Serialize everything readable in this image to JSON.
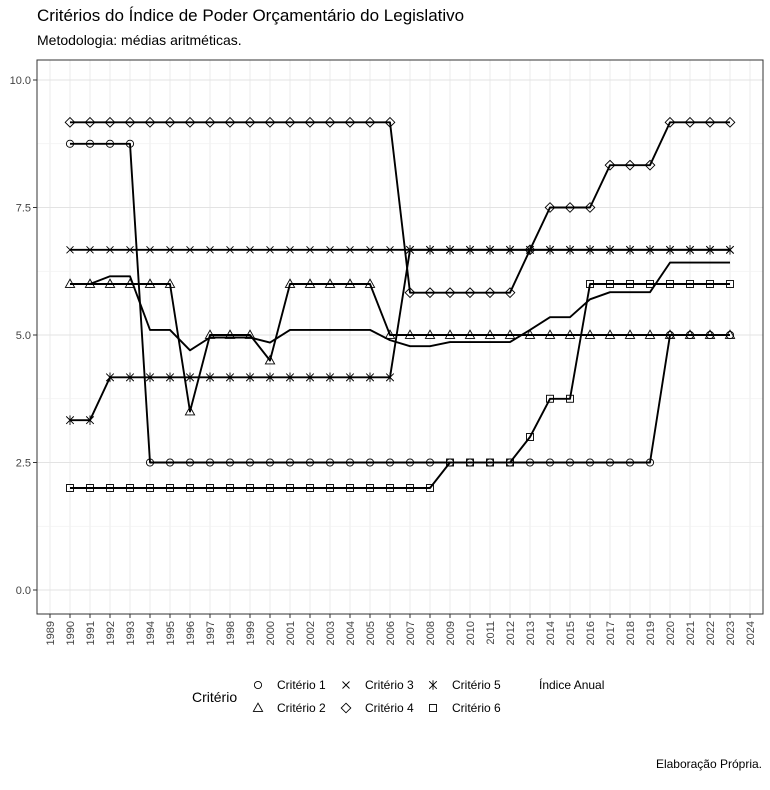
{
  "title": "Critérios do Índice de Poder Orçamentário do Legislativo",
  "subtitle": "Metodologia: médias aritméticas.",
  "caption": "Elaboração Própria.",
  "chart_data": {
    "type": "line",
    "title": "Critérios do Índice de Poder Orçamentário do Legislativo",
    "subtitle": "Metodologia: médias aritméticas.",
    "xlabel": "",
    "ylabel": "",
    "xlim": [
      1989,
      2024
    ],
    "ylim": [
      0,
      10
    ],
    "x_ticks": [
      "1989",
      "1990",
      "1991",
      "1992",
      "1993",
      "1994",
      "1995",
      "1996",
      "1997",
      "1998",
      "1999",
      "2000",
      "2001",
      "2002",
      "2003",
      "2004",
      "2005",
      "2006",
      "2007",
      "2008",
      "2009",
      "2010",
      "2011",
      "2012",
      "2013",
      "2014",
      "2015",
      "2016",
      "2017",
      "2018",
      "2019",
      "2020",
      "2021",
      "2022",
      "2023",
      "2024"
    ],
    "y_ticks": [
      "0.0",
      "2.5",
      "5.0",
      "7.5",
      "10.0"
    ],
    "grid": true,
    "legend": {
      "title": "Critério",
      "position": "bottom"
    },
    "x": [
      1990,
      1991,
      1992,
      1993,
      1994,
      1995,
      1996,
      1997,
      1998,
      1999,
      2000,
      2001,
      2002,
      2003,
      2004,
      2005,
      2006,
      2007,
      2008,
      2009,
      2010,
      2011,
      2012,
      2013,
      2014,
      2015,
      2016,
      2017,
      2018,
      2019,
      2020,
      2021,
      2022,
      2023
    ],
    "series": [
      {
        "name": "Critério 1",
        "marker": "circle",
        "values": [
          8.75,
          8.75,
          8.75,
          8.75,
          2.5,
          2.5,
          2.5,
          2.5,
          2.5,
          2.5,
          2.5,
          2.5,
          2.5,
          2.5,
          2.5,
          2.5,
          2.5,
          2.5,
          2.5,
          2.5,
          2.5,
          2.5,
          2.5,
          2.5,
          2.5,
          2.5,
          2.5,
          2.5,
          2.5,
          2.5,
          5.0,
          5.0,
          5.0,
          5.0
        ]
      },
      {
        "name": "Critério 2",
        "marker": "triangle",
        "values": [
          6.0,
          6.0,
          6.0,
          6.0,
          6.0,
          6.0,
          3.5,
          5.0,
          5.0,
          5.0,
          4.5,
          6.0,
          6.0,
          6.0,
          6.0,
          6.0,
          5.0,
          5.0,
          5.0,
          5.0,
          5.0,
          5.0,
          5.0,
          5.0,
          5.0,
          5.0,
          5.0,
          5.0,
          5.0,
          5.0,
          5.0,
          5.0,
          5.0,
          5.0
        ]
      },
      {
        "name": "Critério 3",
        "marker": "cross",
        "values": [
          6.67,
          6.67,
          6.67,
          6.67,
          6.67,
          6.67,
          6.67,
          6.67,
          6.67,
          6.67,
          6.67,
          6.67,
          6.67,
          6.67,
          6.67,
          6.67,
          6.67,
          6.67,
          6.67,
          6.67,
          6.67,
          6.67,
          6.67,
          6.67,
          6.67,
          6.67,
          6.67,
          6.67,
          6.67,
          6.67,
          6.67,
          6.67,
          6.67,
          6.67
        ]
      },
      {
        "name": "Critério 4",
        "marker": "diamond",
        "values": [
          9.17,
          9.17,
          9.17,
          9.17,
          9.17,
          9.17,
          9.17,
          9.17,
          9.17,
          9.17,
          9.17,
          9.17,
          9.17,
          9.17,
          9.17,
          9.17,
          9.17,
          5.83,
          5.83,
          5.83,
          5.83,
          5.83,
          5.83,
          6.67,
          7.5,
          7.5,
          7.5,
          8.33,
          8.33,
          8.33,
          9.17,
          9.17,
          9.17,
          9.17
        ]
      },
      {
        "name": "Critério 5",
        "marker": "asterisk",
        "values": [
          3.33,
          3.33,
          4.17,
          4.17,
          4.17,
          4.17,
          4.17,
          4.17,
          4.17,
          4.17,
          4.17,
          4.17,
          4.17,
          4.17,
          4.17,
          4.17,
          4.17,
          6.67,
          6.67,
          6.67,
          6.67,
          6.67,
          6.67,
          6.67,
          6.67,
          6.67,
          6.67,
          6.67,
          6.67,
          6.67,
          6.67,
          6.67,
          6.67,
          6.67
        ]
      },
      {
        "name": "Critério 6",
        "marker": "square",
        "values": [
          2.0,
          2.0,
          2.0,
          2.0,
          2.0,
          2.0,
          2.0,
          2.0,
          2.0,
          2.0,
          2.0,
          2.0,
          2.0,
          2.0,
          2.0,
          2.0,
          2.0,
          2.0,
          2.0,
          2.5,
          2.5,
          2.5,
          2.5,
          3.0,
          3.75,
          3.75,
          6.0,
          6.0,
          6.0,
          6.0,
          6.0,
          6.0,
          6.0,
          6.0
        ]
      },
      {
        "name": "Índice Anual",
        "marker": "none",
        "values": [
          6.0,
          6.0,
          6.15,
          6.15,
          5.1,
          5.1,
          4.7,
          4.95,
          4.95,
          4.95,
          4.85,
          5.1,
          5.1,
          5.1,
          5.1,
          5.1,
          4.9,
          4.78,
          4.78,
          4.86,
          4.86,
          4.86,
          4.86,
          5.1,
          5.35,
          5.35,
          5.7,
          5.84,
          5.84,
          5.84,
          6.42,
          6.42,
          6.42,
          6.42
        ]
      }
    ]
  }
}
